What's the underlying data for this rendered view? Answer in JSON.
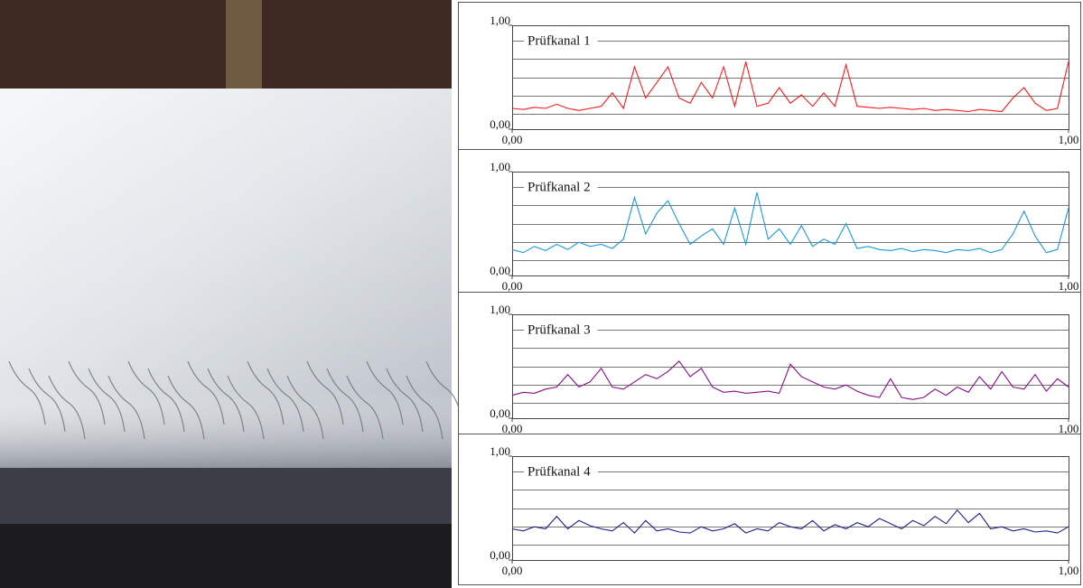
{
  "chart_data": [
    {
      "type": "line",
      "title": "Prüfkanal 1",
      "color": "#ff1a1a",
      "xlim": [
        0,
        1
      ],
      "ylim": [
        0,
        1
      ],
      "xticks": [
        {
          "value": 0,
          "label": "0,00"
        },
        {
          "value": 1,
          "label": "1,00"
        }
      ],
      "yticks": [
        {
          "value": 0,
          "label": "0,00"
        },
        {
          "value": 1,
          "label": "1,00"
        }
      ],
      "ygrid": [
        0.15,
        0.32,
        0.5,
        0.68,
        0.85
      ],
      "x": [
        0,
        0.02,
        0.04,
        0.06,
        0.08,
        0.1,
        0.12,
        0.14,
        0.16,
        0.18,
        0.2,
        0.22,
        0.24,
        0.26,
        0.28,
        0.3,
        0.32,
        0.34,
        0.36,
        0.38,
        0.4,
        0.42,
        0.44,
        0.46,
        0.48,
        0.5,
        0.52,
        0.54,
        0.56,
        0.58,
        0.6,
        0.62,
        0.64,
        0.66,
        0.68,
        0.7,
        0.72,
        0.74,
        0.76,
        0.78,
        0.8,
        0.82,
        0.84,
        0.86,
        0.88,
        0.9,
        0.92,
        0.94,
        0.96,
        0.98,
        1
      ],
      "values": [
        0.2,
        0.19,
        0.21,
        0.2,
        0.24,
        0.2,
        0.18,
        0.2,
        0.22,
        0.35,
        0.2,
        0.6,
        0.3,
        0.45,
        0.6,
        0.3,
        0.25,
        0.45,
        0.3,
        0.6,
        0.22,
        0.65,
        0.22,
        0.25,
        0.4,
        0.25,
        0.33,
        0.22,
        0.35,
        0.22,
        0.62,
        0.22,
        0.21,
        0.2,
        0.21,
        0.2,
        0.19,
        0.2,
        0.18,
        0.19,
        0.18,
        0.17,
        0.19,
        0.18,
        0.17,
        0.3,
        0.4,
        0.25,
        0.18,
        0.2,
        0.65
      ]
    },
    {
      "type": "line",
      "title": "Prüfkanal 2",
      "color": "#1a9be0",
      "xlim": [
        0,
        1
      ],
      "ylim": [
        0,
        1
      ],
      "xticks": [
        {
          "value": 0,
          "label": "0,00"
        },
        {
          "value": 1,
          "label": "1,00"
        }
      ],
      "yticks": [
        {
          "value": 0,
          "label": "0,00"
        },
        {
          "value": 1,
          "label": "1,00"
        }
      ],
      "ygrid": [
        0.15,
        0.32,
        0.5,
        0.68,
        0.85
      ],
      "x": [
        0,
        0.02,
        0.04,
        0.06,
        0.08,
        0.1,
        0.12,
        0.14,
        0.16,
        0.18,
        0.2,
        0.22,
        0.24,
        0.26,
        0.28,
        0.3,
        0.32,
        0.34,
        0.36,
        0.38,
        0.4,
        0.42,
        0.44,
        0.46,
        0.48,
        0.5,
        0.52,
        0.54,
        0.56,
        0.58,
        0.6,
        0.62,
        0.64,
        0.66,
        0.68,
        0.7,
        0.72,
        0.74,
        0.76,
        0.78,
        0.8,
        0.82,
        0.84,
        0.86,
        0.88,
        0.9,
        0.92,
        0.94,
        0.96,
        0.98,
        1
      ],
      "values": [
        0.25,
        0.22,
        0.28,
        0.24,
        0.3,
        0.25,
        0.32,
        0.28,
        0.3,
        0.26,
        0.35,
        0.75,
        0.4,
        0.6,
        0.72,
        0.5,
        0.3,
        0.38,
        0.45,
        0.3,
        0.65,
        0.3,
        0.8,
        0.35,
        0.45,
        0.3,
        0.48,
        0.28,
        0.35,
        0.3,
        0.5,
        0.26,
        0.28,
        0.25,
        0.24,
        0.26,
        0.23,
        0.25,
        0.24,
        0.22,
        0.25,
        0.24,
        0.26,
        0.22,
        0.25,
        0.4,
        0.62,
        0.38,
        0.22,
        0.25,
        0.65
      ]
    },
    {
      "type": "line",
      "title": "Prüfkanal 3",
      "color": "#8a0d8a",
      "xlim": [
        0,
        1
      ],
      "ylim": [
        0,
        1
      ],
      "xticks": [
        {
          "value": 0,
          "label": "0,00"
        },
        {
          "value": 1,
          "label": "1,00"
        }
      ],
      "yticks": [
        {
          "value": 0,
          "label": "0,00"
        },
        {
          "value": 1,
          "label": "1,00"
        }
      ],
      "ygrid": [
        0.15,
        0.32,
        0.5,
        0.68,
        0.85
      ],
      "x": [
        0,
        0.02,
        0.04,
        0.06,
        0.08,
        0.1,
        0.12,
        0.14,
        0.16,
        0.18,
        0.2,
        0.22,
        0.24,
        0.26,
        0.28,
        0.3,
        0.32,
        0.34,
        0.36,
        0.38,
        0.4,
        0.42,
        0.44,
        0.46,
        0.48,
        0.5,
        0.52,
        0.54,
        0.56,
        0.58,
        0.6,
        0.62,
        0.64,
        0.66,
        0.68,
        0.7,
        0.72,
        0.74,
        0.76,
        0.78,
        0.8,
        0.82,
        0.84,
        0.86,
        0.88,
        0.9,
        0.92,
        0.94,
        0.96,
        0.98,
        1
      ],
      "values": [
        0.22,
        0.25,
        0.24,
        0.28,
        0.3,
        0.42,
        0.3,
        0.35,
        0.48,
        0.3,
        0.28,
        0.35,
        0.42,
        0.38,
        0.45,
        0.55,
        0.4,
        0.48,
        0.3,
        0.25,
        0.26,
        0.24,
        0.25,
        0.26,
        0.24,
        0.52,
        0.4,
        0.35,
        0.3,
        0.28,
        0.32,
        0.26,
        0.22,
        0.2,
        0.38,
        0.2,
        0.18,
        0.2,
        0.28,
        0.22,
        0.3,
        0.25,
        0.4,
        0.28,
        0.45,
        0.3,
        0.28,
        0.42,
        0.26,
        0.38,
        0.3
      ]
    },
    {
      "type": "line",
      "title": "Prüfkanal 4",
      "color": "#1e1e8c",
      "xlim": [
        0,
        1
      ],
      "ylim": [
        0,
        1
      ],
      "xticks": [
        {
          "value": 0,
          "label": "0,00"
        },
        {
          "value": 1,
          "label": "1,00"
        }
      ],
      "yticks": [
        {
          "value": 0,
          "label": "0,00"
        },
        {
          "value": 1,
          "label": "1,00"
        }
      ],
      "ygrid": [
        0.15,
        0.32,
        0.5,
        0.68,
        0.85
      ],
      "x": [
        0,
        0.02,
        0.04,
        0.06,
        0.08,
        0.1,
        0.12,
        0.14,
        0.16,
        0.18,
        0.2,
        0.22,
        0.24,
        0.26,
        0.28,
        0.3,
        0.32,
        0.34,
        0.36,
        0.38,
        0.4,
        0.42,
        0.44,
        0.46,
        0.48,
        0.5,
        0.52,
        0.54,
        0.56,
        0.58,
        0.6,
        0.62,
        0.64,
        0.66,
        0.68,
        0.7,
        0.72,
        0.74,
        0.76,
        0.78,
        0.8,
        0.82,
        0.84,
        0.86,
        0.88,
        0.9,
        0.92,
        0.94,
        0.96,
        0.98,
        1
      ],
      "values": [
        0.3,
        0.28,
        0.32,
        0.3,
        0.42,
        0.3,
        0.38,
        0.33,
        0.3,
        0.28,
        0.36,
        0.26,
        0.38,
        0.28,
        0.3,
        0.27,
        0.26,
        0.32,
        0.28,
        0.3,
        0.35,
        0.26,
        0.3,
        0.28,
        0.36,
        0.32,
        0.3,
        0.38,
        0.28,
        0.34,
        0.3,
        0.36,
        0.32,
        0.4,
        0.35,
        0.3,
        0.38,
        0.33,
        0.42,
        0.35,
        0.48,
        0.36,
        0.45,
        0.3,
        0.32,
        0.28,
        0.3,
        0.27,
        0.28,
        0.26,
        0.32
      ]
    }
  ]
}
